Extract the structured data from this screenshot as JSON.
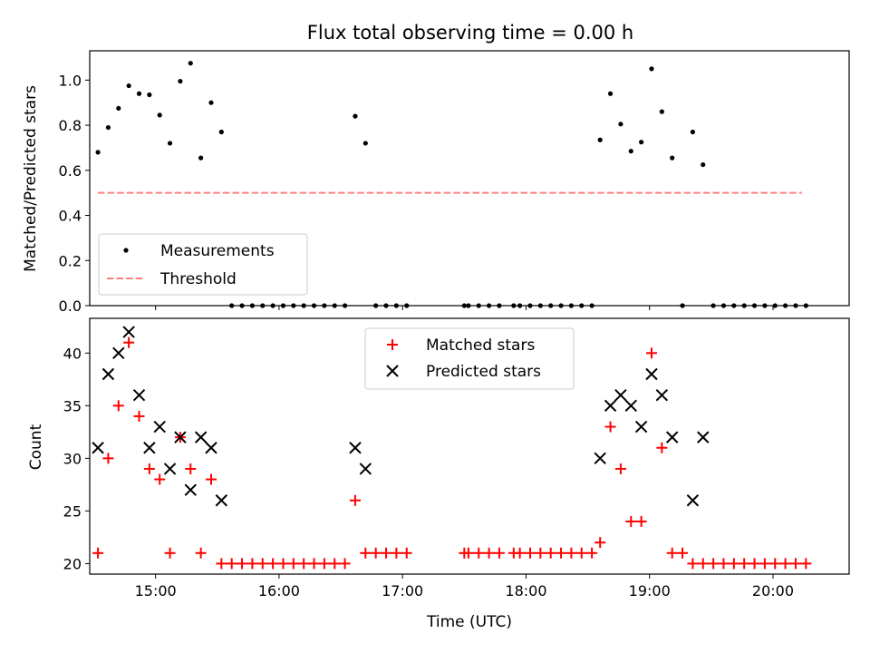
{
  "chart_data": [
    {
      "type": "scatter",
      "title": "Flux total observing time = 0.00 h",
      "xlabel": "",
      "ylabel": "Matched/Predicted stars",
      "ylim": [
        0,
        1.13
      ],
      "xlim": [
        "14:28",
        "20:37"
      ],
      "x_tick_labels": [
        "15:00",
        "16:00",
        "17:00",
        "18:00",
        "19:00",
        "20:00"
      ],
      "y_ticks": [
        "0.0",
        "0.2",
        "0.4",
        "0.6",
        "0.8",
        "1.0"
      ],
      "legend_position": "lower-left",
      "series": [
        {
          "name": "Measurements",
          "color": "#000000",
          "marker": "dot",
          "points": [
            [
              "14:32",
              0.68
            ],
            [
              "14:37",
              0.79
            ],
            [
              "14:42",
              0.875
            ],
            [
              "14:47",
              0.975
            ],
            [
              "14:52",
              0.94
            ],
            [
              "14:57",
              0.935
            ],
            [
              "15:02",
              0.845
            ],
            [
              "15:07",
              0.72
            ],
            [
              "15:12",
              0.995
            ],
            [
              "15:17",
              1.075
            ],
            [
              "15:22",
              0.655
            ],
            [
              "15:27",
              0.9
            ],
            [
              "15:32",
              0.77
            ],
            [
              "15:37",
              0
            ],
            [
              "15:42",
              0
            ],
            [
              "15:47",
              0
            ],
            [
              "15:52",
              0
            ],
            [
              "15:57",
              0
            ],
            [
              "16:02",
              0
            ],
            [
              "16:07",
              0
            ],
            [
              "16:12",
              0
            ],
            [
              "16:17",
              0
            ],
            [
              "16:22",
              0
            ],
            [
              "16:27",
              0
            ],
            [
              "16:32",
              0
            ],
            [
              "16:37",
              0.84
            ],
            [
              "16:42",
              0.72
            ],
            [
              "16:47",
              0
            ],
            [
              "16:52",
              0
            ],
            [
              "16:57",
              0
            ],
            [
              "17:02",
              0
            ],
            [
              "17:30",
              0
            ],
            [
              "17:32",
              0
            ],
            [
              "17:37",
              0
            ],
            [
              "17:42",
              0
            ],
            [
              "17:47",
              0
            ],
            [
              "17:54",
              0
            ],
            [
              "17:57",
              0
            ],
            [
              "18:02",
              0
            ],
            [
              "18:07",
              0
            ],
            [
              "18:12",
              0
            ],
            [
              "18:17",
              0
            ],
            [
              "18:22",
              0
            ],
            [
              "18:27",
              0
            ],
            [
              "18:32",
              0
            ],
            [
              "18:36",
              0.735
            ],
            [
              "18:41",
              0.94
            ],
            [
              "18:46",
              0.805
            ],
            [
              "18:51",
              0.685
            ],
            [
              "18:56",
              0.725
            ],
            [
              "19:01",
              1.05
            ],
            [
              "19:06",
              0.86
            ],
            [
              "19:11",
              0.655
            ],
            [
              "19:16",
              0
            ],
            [
              "19:21",
              0.77
            ],
            [
              "19:26",
              0.625
            ],
            [
              "19:31",
              0
            ],
            [
              "19:36",
              0
            ],
            [
              "19:41",
              0
            ],
            [
              "19:46",
              0
            ],
            [
              "19:51",
              0
            ],
            [
              "19:56",
              0
            ],
            [
              "20:01",
              0
            ],
            [
              "20:06",
              0
            ],
            [
              "20:11",
              0
            ],
            [
              "20:16",
              0
            ]
          ]
        },
        {
          "name": "Threshold",
          "color": "#ff7f7f",
          "style": "dashed",
          "points": [
            [
              "14:32",
              0.5
            ],
            [
              "20:14",
              0.5
            ]
          ]
        }
      ]
    },
    {
      "type": "scatter",
      "title": "",
      "xlabel": "Time (UTC)",
      "ylabel": "Count",
      "ylim": [
        19,
        43.3
      ],
      "xlim": [
        "14:28",
        "20:37"
      ],
      "x_tick_labels": [
        "15:00",
        "16:00",
        "17:00",
        "18:00",
        "19:00",
        "20:00"
      ],
      "y_ticks": [
        "20",
        "25",
        "30",
        "35",
        "40"
      ],
      "legend_position": "upper-center",
      "series": [
        {
          "name": "Matched stars",
          "color": "#ff0000",
          "marker": "plus",
          "points": [
            [
              "14:32",
              21
            ],
            [
              "14:37",
              30
            ],
            [
              "14:42",
              35
            ],
            [
              "14:47",
              41
            ],
            [
              "14:52",
              34
            ],
            [
              "14:57",
              29
            ],
            [
              "15:02",
              28
            ],
            [
              "15:07",
              21
            ],
            [
              "15:12",
              32
            ],
            [
              "15:17",
              29
            ],
            [
              "15:22",
              21
            ],
            [
              "15:27",
              28
            ],
            [
              "15:32",
              20
            ],
            [
              "15:37",
              20
            ],
            [
              "15:42",
              20
            ],
            [
              "15:47",
              20
            ],
            [
              "15:52",
              20
            ],
            [
              "15:57",
              20
            ],
            [
              "16:02",
              20
            ],
            [
              "16:07",
              20
            ],
            [
              "16:12",
              20
            ],
            [
              "16:17",
              20
            ],
            [
              "16:22",
              20
            ],
            [
              "16:27",
              20
            ],
            [
              "16:32",
              20
            ],
            [
              "16:37",
              26
            ],
            [
              "16:42",
              21
            ],
            [
              "16:47",
              21
            ],
            [
              "16:52",
              21
            ],
            [
              "16:57",
              21
            ],
            [
              "17:02",
              21
            ],
            [
              "17:30",
              21
            ],
            [
              "17:32",
              21
            ],
            [
              "17:37",
              21
            ],
            [
              "17:42",
              21
            ],
            [
              "17:47",
              21
            ],
            [
              "17:54",
              21
            ],
            [
              "17:57",
              21
            ],
            [
              "18:02",
              21
            ],
            [
              "18:07",
              21
            ],
            [
              "18:12",
              21
            ],
            [
              "18:17",
              21
            ],
            [
              "18:22",
              21
            ],
            [
              "18:27",
              21
            ],
            [
              "18:32",
              21
            ],
            [
              "18:36",
              22
            ],
            [
              "18:41",
              33
            ],
            [
              "18:46",
              29
            ],
            [
              "18:51",
              24
            ],
            [
              "18:56",
              24
            ],
            [
              "19:01",
              40
            ],
            [
              "19:06",
              31
            ],
            [
              "19:11",
              21
            ],
            [
              "19:16",
              21
            ],
            [
              "19:21",
              20
            ],
            [
              "19:26",
              20
            ],
            [
              "19:31",
              20
            ],
            [
              "19:36",
              20
            ],
            [
              "19:41",
              20
            ],
            [
              "19:46",
              20
            ],
            [
              "19:51",
              20
            ],
            [
              "19:56",
              20
            ],
            [
              "20:01",
              20
            ],
            [
              "20:06",
              20
            ],
            [
              "20:11",
              20
            ],
            [
              "20:16",
              20
            ]
          ]
        },
        {
          "name": "Predicted stars",
          "color": "#000000",
          "marker": "x",
          "points": [
            [
              "14:32",
              31
            ],
            [
              "14:37",
              38
            ],
            [
              "14:42",
              40
            ],
            [
              "14:47",
              42
            ],
            [
              "14:52",
              36
            ],
            [
              "14:57",
              31
            ],
            [
              "15:02",
              33
            ],
            [
              "15:07",
              29
            ],
            [
              "15:12",
              32
            ],
            [
              "15:17",
              27
            ],
            [
              "15:22",
              32
            ],
            [
              "15:27",
              31
            ],
            [
              "15:32",
              26
            ],
            [
              "16:37",
              31
            ],
            [
              "16:42",
              29
            ],
            [
              "18:36",
              30
            ],
            [
              "18:41",
              35
            ],
            [
              "18:46",
              36
            ],
            [
              "18:51",
              35
            ],
            [
              "18:56",
              33
            ],
            [
              "19:01",
              38
            ],
            [
              "19:06",
              36
            ],
            [
              "19:11",
              32
            ],
            [
              "19:21",
              26
            ],
            [
              "19:26",
              32
            ]
          ]
        }
      ]
    }
  ]
}
